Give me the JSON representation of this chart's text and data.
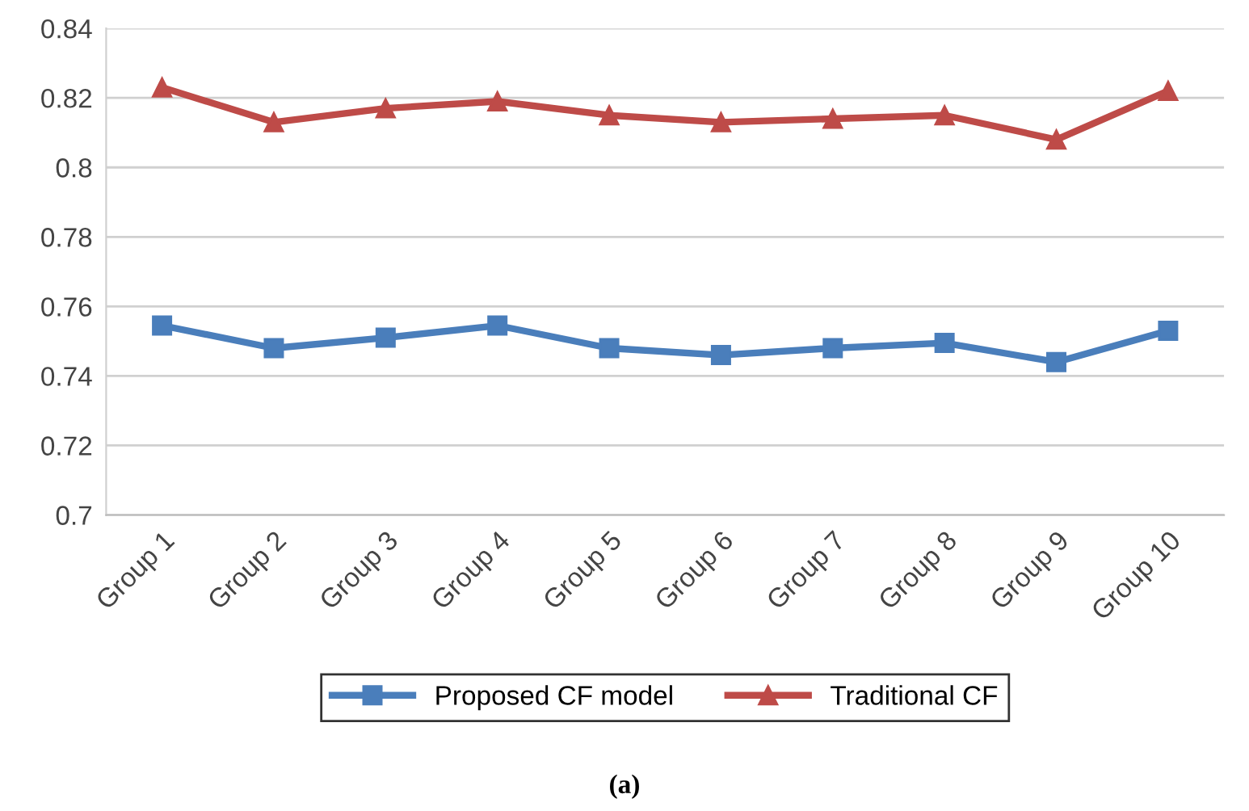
{
  "chart_data": {
    "type": "line",
    "categories": [
      "Group 1",
      "Group 2",
      "Group 3",
      "Group 4",
      "Group 5",
      "Group 6",
      "Group 7",
      "Group 8",
      "Group 9",
      "Group 10"
    ],
    "series": [
      {
        "name": "Proposed CF model",
        "color": "#4a7ebb",
        "marker": "square",
        "values": [
          0.7545,
          0.748,
          0.751,
          0.7545,
          0.748,
          0.746,
          0.748,
          0.7495,
          0.744,
          0.753
        ]
      },
      {
        "name": "Traditional CF",
        "color": "#be4b48",
        "marker": "triangle",
        "values": [
          0.823,
          0.813,
          0.817,
          0.819,
          0.815,
          0.813,
          0.814,
          0.815,
          0.808,
          0.822
        ]
      }
    ],
    "ylim": [
      0.7,
      0.84
    ],
    "yticks": [
      0.7,
      0.72,
      0.74,
      0.76,
      0.78,
      {
        "value": 0.8,
        "label": "0.8"
      },
      0.82,
      0.84
    ],
    "grid": "y",
    "legend": "bottom",
    "annotations": [
      "(a)"
    ]
  }
}
